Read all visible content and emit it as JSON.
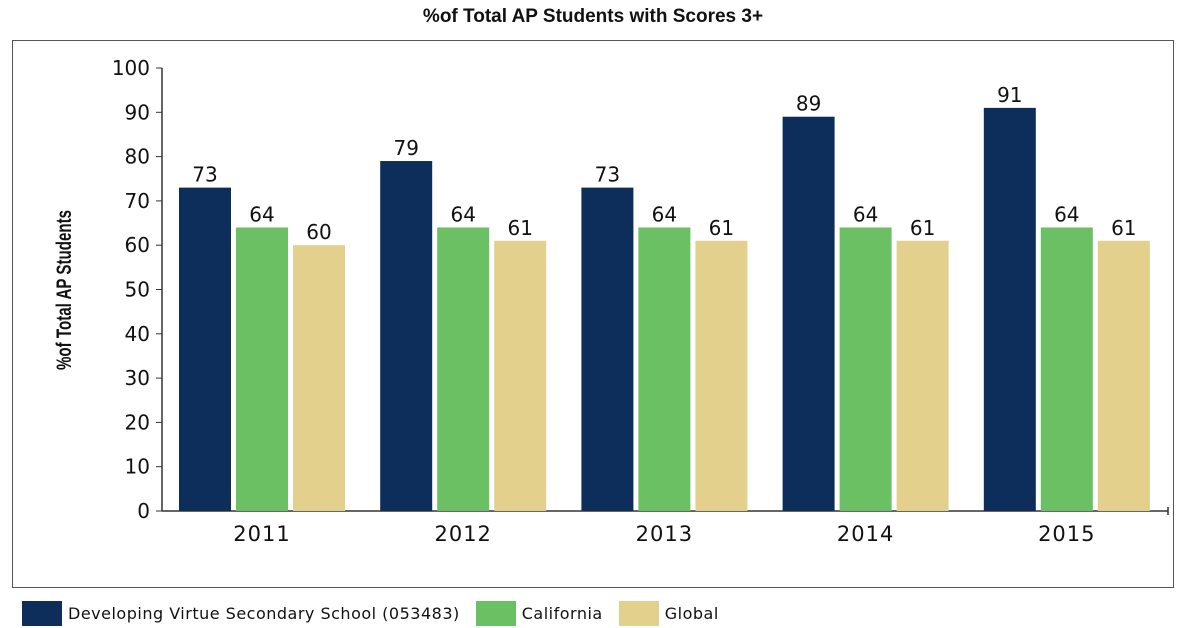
{
  "colors": {
    "school": "#0d2e5b",
    "california": "#6cc064",
    "global": "#e2d08c"
  },
  "chart_data": {
    "type": "bar",
    "title": "%of Total AP Students with Scores 3+",
    "ylabel": "%of Total AP Students",
    "xlabel": "",
    "ylim": [
      0,
      100
    ],
    "yticks": [
      "0",
      "10",
      "20",
      "30",
      "40",
      "50",
      "60",
      "70",
      "80",
      "90",
      "100"
    ],
    "categories": [
      "2011",
      "2012",
      "2013",
      "2014",
      "2015"
    ],
    "legend_position": "bottom-left",
    "grid": false,
    "series": [
      {
        "name": "Developing Virtue Secondary School (053483)",
        "values": [
          73,
          79,
          73,
          89,
          91
        ]
      },
      {
        "name": "California",
        "values": [
          64,
          64,
          64,
          64,
          64
        ]
      },
      {
        "name": "Global",
        "values": [
          60,
          61,
          61,
          61,
          61
        ]
      }
    ]
  }
}
